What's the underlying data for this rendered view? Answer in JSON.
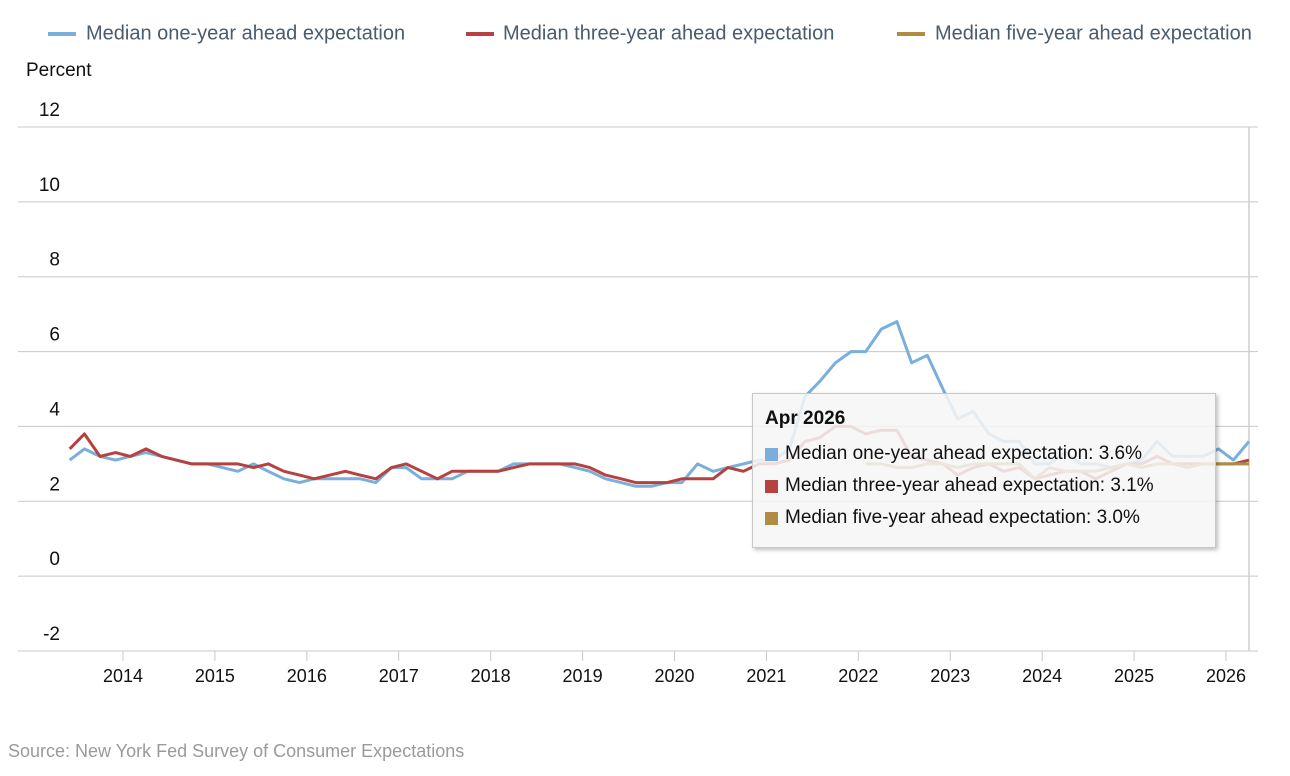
{
  "chart_data": {
    "type": "line",
    "y_label": "Percent",
    "source": "Source: New York Fed Survey of Consumer Expectations",
    "x": [
      2013.42,
      2013.58,
      2013.75,
      2013.92,
      2014.08,
      2014.25,
      2014.42,
      2014.58,
      2014.75,
      2014.92,
      2015.08,
      2015.25,
      2015.42,
      2015.58,
      2015.75,
      2015.92,
      2016.08,
      2016.25,
      2016.42,
      2016.58,
      2016.75,
      2016.92,
      2017.08,
      2017.25,
      2017.42,
      2017.58,
      2017.75,
      2017.92,
      2018.08,
      2018.25,
      2018.42,
      2018.58,
      2018.75,
      2018.92,
      2019.08,
      2019.25,
      2019.42,
      2019.58,
      2019.75,
      2019.92,
      2020.08,
      2020.25,
      2020.42,
      2020.58,
      2020.75,
      2020.92,
      2021.08,
      2021.25,
      2021.42,
      2021.58,
      2021.75,
      2021.92,
      2022.08,
      2022.25,
      2022.42,
      2022.58,
      2022.75,
      2022.92,
      2023.08,
      2023.25,
      2023.42,
      2023.58,
      2023.75,
      2023.92,
      2024.08,
      2024.25,
      2024.42,
      2024.58,
      2024.75,
      2024.92,
      2025.08,
      2025.25,
      2025.42,
      2025.58,
      2025.75,
      2025.92,
      2026.08,
      2026.25
    ],
    "series": [
      {
        "name": "Median one-year ahead expectation",
        "color": "#7aaedc",
        "values": [
          3.1,
          3.4,
          3.2,
          3.1,
          3.2,
          3.3,
          3.2,
          3.1,
          3.0,
          3.0,
          2.9,
          2.8,
          3.0,
          2.8,
          2.6,
          2.5,
          2.6,
          2.6,
          2.6,
          2.6,
          2.5,
          2.9,
          2.9,
          2.6,
          2.6,
          2.6,
          2.8,
          2.8,
          2.8,
          3.0,
          3.0,
          3.0,
          3.0,
          2.9,
          2.8,
          2.6,
          2.5,
          2.4,
          2.4,
          2.5,
          2.5,
          3.0,
          2.8,
          2.9,
          3.0,
          3.1,
          3.1,
          3.4,
          4.8,
          5.2,
          5.7,
          6.0,
          6.0,
          6.6,
          6.8,
          5.7,
          5.9,
          5.0,
          4.2,
          4.4,
          3.8,
          3.6,
          3.6,
          3.0,
          3.0,
          3.3,
          3.0,
          3.0,
          2.9,
          3.0,
          3.1,
          3.6,
          3.2,
          3.2,
          3.2,
          3.4,
          3.1,
          3.6
        ]
      },
      {
        "name": "Median three-year ahead expectation",
        "color": "#b5423f",
        "values": [
          3.4,
          3.8,
          3.2,
          3.3,
          3.2,
          3.4,
          3.2,
          3.1,
          3.0,
          3.0,
          3.0,
          3.0,
          2.9,
          3.0,
          2.8,
          2.7,
          2.6,
          2.7,
          2.8,
          2.7,
          2.6,
          2.9,
          3.0,
          2.8,
          2.6,
          2.8,
          2.8,
          2.8,
          2.8,
          2.9,
          3.0,
          3.0,
          3.0,
          3.0,
          2.9,
          2.7,
          2.6,
          2.5,
          2.5,
          2.5,
          2.6,
          2.6,
          2.6,
          2.9,
          2.8,
          3.0,
          3.0,
          3.1,
          3.6,
          3.7,
          4.0,
          4.0,
          3.8,
          3.9,
          3.9,
          3.2,
          3.1,
          3.0,
          2.7,
          2.9,
          3.0,
          2.8,
          2.9,
          2.6,
          2.7,
          2.8,
          2.8,
          2.6,
          2.8,
          3.0,
          3.0,
          3.2,
          3.0,
          3.0,
          3.0,
          3.0,
          3.0,
          3.1
        ]
      },
      {
        "name": "Median five-year ahead expectation",
        "color": "#b08b46",
        "values": [
          null,
          null,
          null,
          null,
          null,
          null,
          null,
          null,
          null,
          null,
          null,
          null,
          null,
          null,
          null,
          null,
          null,
          null,
          null,
          null,
          null,
          null,
          null,
          null,
          null,
          null,
          null,
          null,
          null,
          null,
          null,
          null,
          null,
          null,
          null,
          null,
          null,
          null,
          null,
          null,
          null,
          null,
          null,
          null,
          null,
          null,
          null,
          null,
          null,
          null,
          null,
          null,
          3.0,
          3.0,
          2.9,
          2.9,
          3.0,
          3.0,
          2.9,
          3.0,
          3.0,
          3.0,
          3.0,
          2.6,
          2.9,
          2.8,
          2.8,
          2.8,
          2.9,
          3.0,
          2.9,
          3.0,
          3.0,
          2.9,
          3.0,
          3.0,
          3.0,
          3.0
        ]
      }
    ],
    "xlim": [
      2013.1,
      2026.35
    ],
    "xticks": [
      2014,
      2015,
      2016,
      2017,
      2018,
      2019,
      2020,
      2021,
      2022,
      2023,
      2024,
      2025,
      2026
    ],
    "ylim": [
      -2,
      12
    ],
    "yticks": [
      -2,
      0,
      2,
      4,
      6,
      8,
      10,
      12
    ],
    "grid": true,
    "tooltip": {
      "title": "Apr 2026",
      "items": [
        "Median one-year ahead expectation: 3.6%",
        "Median three-year ahead expectation: 3.1%",
        "Median five-year ahead expectation: 3.0%"
      ]
    }
  }
}
